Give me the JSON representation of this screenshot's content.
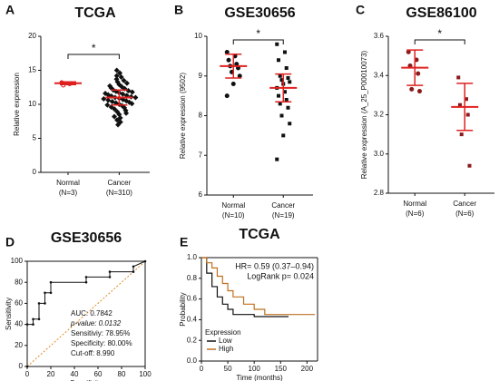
{
  "chart_data": [
    {
      "type": "strip",
      "label": "A",
      "title": "TCGA",
      "ylabel": "Relative expression",
      "categories": [
        "Normal",
        "Cancer"
      ],
      "sublabels": [
        "(N=3)",
        "(N=310)"
      ],
      "markers": [
        "circle",
        "diamond"
      ],
      "colors": [
        "#d62020",
        "#111111"
      ],
      "error_color": "#e02020",
      "points": [
        [
          13.2,
          13.0,
          12.8
        ],
        [
          15.0,
          14.6,
          14.2,
          14.0,
          13.7,
          13.5,
          13.3,
          13.1,
          12.9,
          12.7,
          12.6,
          12.4,
          12.3,
          12.1,
          12.0,
          11.9,
          11.8,
          11.7,
          11.6,
          11.5,
          11.4,
          11.3,
          11.2,
          11.1,
          11.0,
          11.0,
          10.9,
          10.8,
          10.7,
          10.6,
          10.5,
          10.4,
          10.3,
          10.2,
          10.1,
          10.0,
          9.9,
          9.8,
          9.6,
          9.5,
          9.3,
          9.1,
          8.9,
          8.7,
          8.5,
          8.2,
          8.0,
          7.7,
          7.4,
          7.0
        ]
      ],
      "means": [
        13.1,
        11.0
      ],
      "errors": [
        0.2,
        1.1
      ],
      "annotation": "*",
      "ylim": [
        0,
        20
      ],
      "yticks": [
        0,
        5,
        10,
        15,
        20
      ]
    },
    {
      "type": "strip",
      "label": "B",
      "title": "GSE30656",
      "ylabel": "Relative expression (9502)",
      "categories": [
        "Normal",
        "Cancer"
      ],
      "sublabels": [
        "(N=10)",
        "(N=19)"
      ],
      "markers": [
        "circle",
        "square"
      ],
      "colors": [
        "#111111",
        "#111111"
      ],
      "error_color": "#e02020",
      "points": [
        [
          9.6,
          9.5,
          9.4,
          9.3,
          9.25,
          9.2,
          9.1,
          9.0,
          8.8,
          8.5
        ],
        [
          9.8,
          9.6,
          9.4,
          9.2,
          9.0,
          8.95,
          8.9,
          8.85,
          8.8,
          8.7,
          8.6,
          8.5,
          8.4,
          8.3,
          8.2,
          8.0,
          7.8,
          7.5,
          6.9
        ]
      ],
      "means": [
        9.25,
        8.7
      ],
      "errors": [
        0.3,
        0.35
      ],
      "annotation": "*",
      "ylim": [
        6,
        10
      ],
      "yticks": [
        6,
        7,
        8,
        9,
        10
      ]
    },
    {
      "type": "strip",
      "label": "C",
      "title": "GSE86100",
      "ylabel": "Relative expression (A_25_P00010073)",
      "categories": [
        "Normal",
        "Cancer"
      ],
      "sublabels": [
        "(N=6)",
        "(N=6)"
      ],
      "markers": [
        "circle",
        "square"
      ],
      "colors": [
        "#8b1a1a",
        "#8b1a1a"
      ],
      "error_color": "#e02020",
      "points": [
        [
          3.52,
          3.48,
          3.45,
          3.41,
          3.33,
          3.32
        ],
        [
          3.39,
          3.28,
          3.25,
          3.2,
          3.1,
          2.94
        ]
      ],
      "means": [
        3.44,
        3.24
      ],
      "errors": [
        0.09,
        0.12
      ],
      "annotation": "*",
      "ylim": [
        2.8,
        3.6
      ],
      "yticks": [
        2.8,
        {
          "value": 3,
          "label": "3.0"
        },
        3.2,
        3.4,
        3.6
      ]
    },
    {
      "type": "roc",
      "label": "D",
      "title": "GSE30656",
      "xlabel": "Specificity",
      "ylabel": "Sensitivity",
      "color": "#111111",
      "reference_color": "#e08a1e",
      "x": [
        0,
        0,
        5,
        5,
        10,
        10,
        15,
        15,
        20,
        20,
        50,
        50,
        70,
        70,
        90,
        90,
        100
      ],
      "values": [
        0,
        40,
        40,
        45,
        45,
        60,
        60,
        70,
        70,
        80,
        80,
        85,
        85,
        90,
        90,
        95,
        100
      ],
      "annotations": [
        "AUC: 0.7842",
        "p-value: 0.0132",
        "Sensitiviy: 78.95%",
        "Specificity: 80.00%",
        "Cut-off: 8.990"
      ],
      "xlim": [
        0,
        100
      ],
      "xticks": [
        0,
        20,
        40,
        60,
        80,
        100
      ],
      "ylim": [
        0,
        100
      ],
      "yticks": [
        0,
        20,
        40,
        60,
        80,
        100
      ]
    },
    {
      "type": "km",
      "label": "E",
      "title": "TCGA",
      "xlabel": "Time (months)",
      "ylabel": "Probability",
      "annotations": [
        "HR= 0.59 (0.37–0.94)",
        "LogRank p= 0.024"
      ],
      "legend_title": "Expression",
      "series": [
        {
          "name": "Low",
          "color": "#111111",
          "x": [
            0,
            10,
            20,
            30,
            40,
            50,
            60,
            80,
            100,
            120,
            150,
            165
          ],
          "values": [
            1,
            0.85,
            0.72,
            0.62,
            0.55,
            0.5,
            0.45,
            0.45,
            0.43,
            0.43,
            0.43,
            0.43
          ]
        },
        {
          "name": "High",
          "color": "#c07020",
          "x": [
            0,
            10,
            20,
            30,
            40,
            50,
            60,
            80,
            100,
            120,
            150,
            200,
            215
          ],
          "values": [
            1,
            0.95,
            0.9,
            0.82,
            0.75,
            0.68,
            0.62,
            0.55,
            0.5,
            0.45,
            0.45,
            0.45,
            0.45
          ]
        }
      ],
      "xlim": [
        0,
        220
      ],
      "xticks": [
        0,
        50,
        100,
        150,
        200
      ],
      "ylim": [
        0,
        1
      ],
      "yticks": [
        {
          "value": 0,
          "label": "0.0"
        },
        0.2,
        0.4,
        0.6,
        0.8,
        {
          "value": 1,
          "label": "1.0"
        }
      ]
    }
  ]
}
